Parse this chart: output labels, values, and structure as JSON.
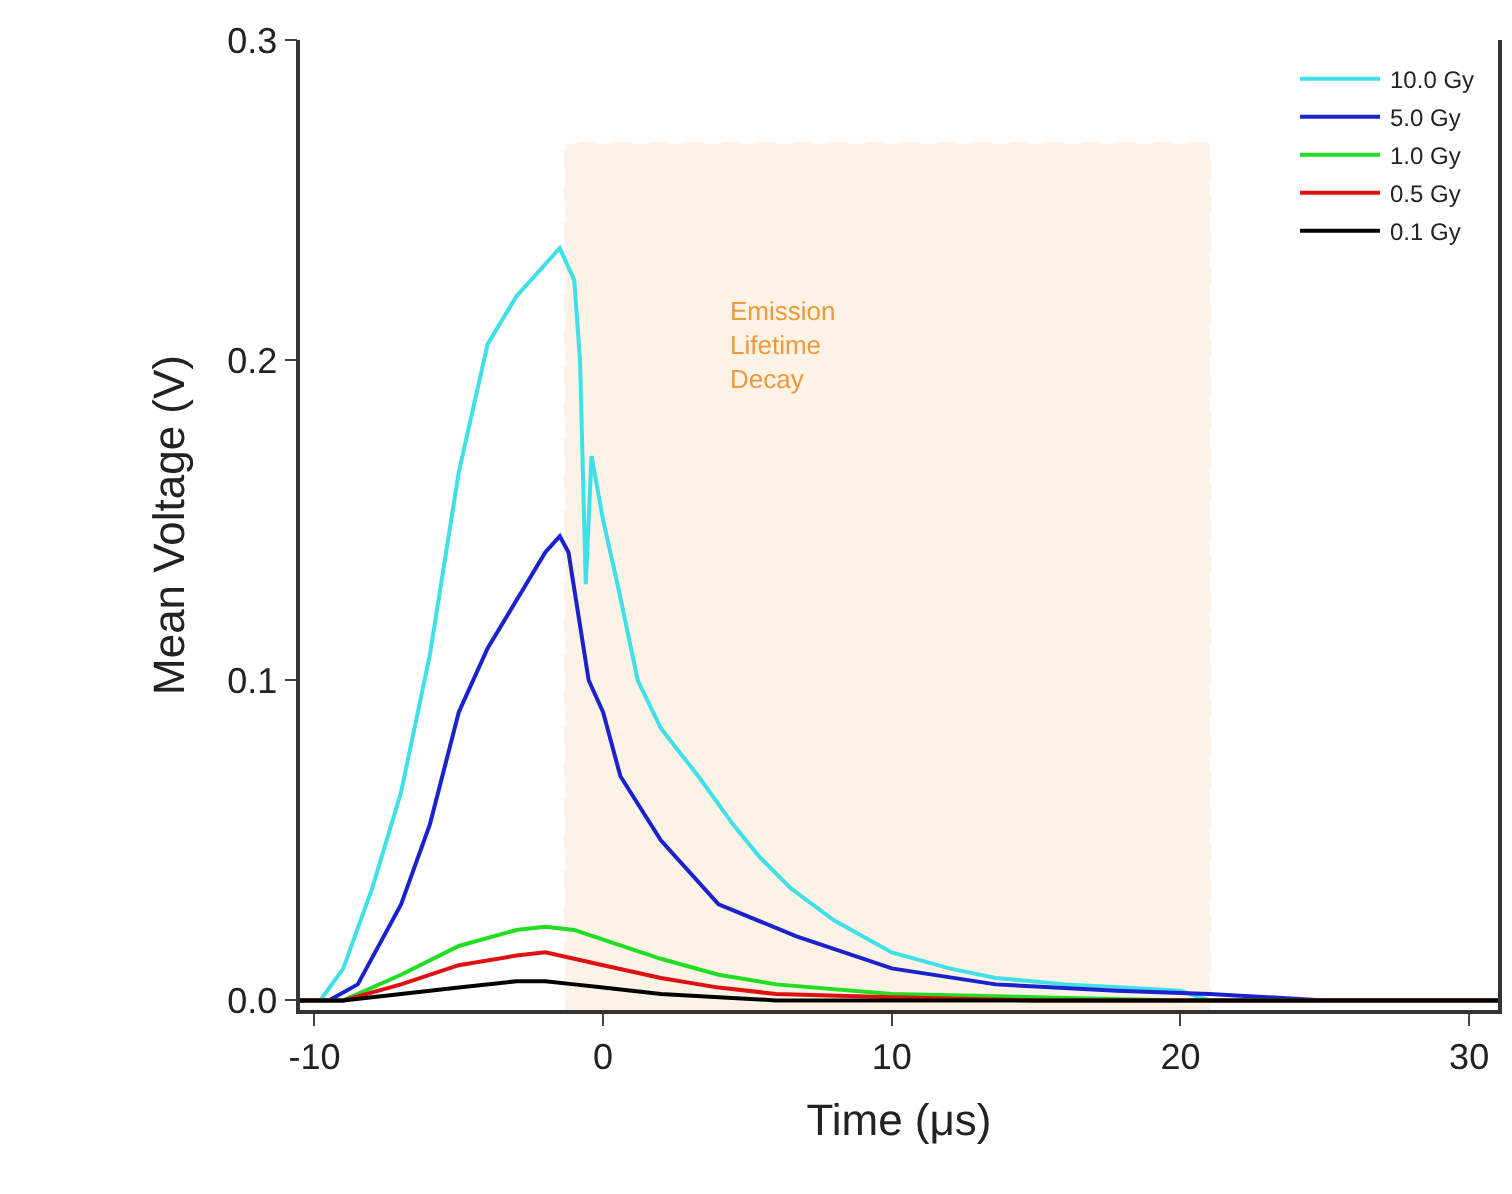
{
  "chart_data": {
    "type": "line",
    "xlabel": "Time (μs)",
    "ylabel": "Mean Voltage (V)",
    "xlim": [
      -10.5,
      31
    ],
    "xticks": [
      -10,
      0,
      10,
      20,
      30
    ],
    "ylim": [
      -0.003,
      0.3
    ],
    "yticks": [
      {
        "value": 0,
        "label": "0.0"
      },
      0.1,
      0.2,
      0.3
    ],
    "grid": false,
    "legend": "top right",
    "line_style": "solid",
    "marker": "none",
    "bands": [
      {
        "axis": "x",
        "from": -1.3,
        "to": 21,
        "label": "Emission\nLifetime\nDecay",
        "color": "#ee9a3a"
      }
    ],
    "series": [
      {
        "name": "10.0 Gy",
        "color": "#3fe0e8",
        "x": [
          -10.5,
          -9.8,
          -9,
          -8,
          -7,
          -6,
          -5,
          -4,
          -3,
          -2,
          -1.5,
          -1,
          -0.8,
          -0.6,
          -0.4,
          0,
          0.5,
          1.2,
          2,
          3.3,
          4.5,
          5.4,
          6.5,
          8,
          10,
          12,
          13.6,
          16,
          18,
          20,
          21,
          31
        ],
        "values": [
          0,
          0,
          0.01,
          0.035,
          0.065,
          0.108,
          0.165,
          0.205,
          0.22,
          0.23,
          0.235,
          0.225,
          0.2,
          0.13,
          0.17,
          0.15,
          0.13,
          0.1,
          0.085,
          0.07,
          0.055,
          0.045,
          0.035,
          0.025,
          0.015,
          0.01,
          0.007,
          0.005,
          0.004,
          0.003,
          0,
          0
        ]
      },
      {
        "name": "5.0 Gy",
        "color": "#1a22cc",
        "x": [
          -10.5,
          -9.5,
          -8.5,
          -7,
          -6,
          -5,
          -4,
          -3,
          -2,
          -1.5,
          -1.2,
          -0.5,
          0,
          0.6,
          2,
          4,
          6.7,
          10,
          13.6,
          17.8,
          21,
          25,
          31
        ],
        "values": [
          0,
          0,
          0.005,
          0.03,
          0.055,
          0.09,
          0.11,
          0.125,
          0.14,
          0.145,
          0.14,
          0.1,
          0.09,
          0.07,
          0.05,
          0.03,
          0.02,
          0.01,
          0.005,
          0.003,
          0.002,
          0,
          0
        ]
      },
      {
        "name": "1.0 Gy",
        "color": "#22dd22",
        "x": [
          -10.5,
          -9,
          -7,
          -5,
          -3,
          -2,
          -1,
          0,
          2,
          4,
          6,
          10,
          15,
          20,
          31
        ],
        "values": [
          0,
          0,
          0.008,
          0.017,
          0.022,
          0.023,
          0.022,
          0.019,
          0.013,
          0.008,
          0.005,
          0.002,
          0.001,
          0,
          0
        ]
      },
      {
        "name": "0.5 Gy",
        "color": "#dd1111",
        "x": [
          -10.5,
          -9,
          -7,
          -5,
          -3,
          -2,
          -1,
          0,
          2,
          4,
          6,
          10,
          15,
          31
        ],
        "values": [
          0,
          0,
          0.005,
          0.011,
          0.014,
          0.015,
          0.013,
          0.011,
          0.007,
          0.004,
          0.002,
          0.001,
          0,
          0
        ]
      },
      {
        "name": "0.1 Gy",
        "color": "#000000",
        "x": [
          -10.5,
          -9,
          -7,
          -5,
          -3,
          -2,
          -1,
          0,
          2,
          4,
          6,
          10,
          31
        ],
        "values": [
          0,
          0,
          0.002,
          0.004,
          0.006,
          0.006,
          0.005,
          0.004,
          0.002,
          0.001,
          0,
          0,
          0
        ]
      }
    ]
  }
}
